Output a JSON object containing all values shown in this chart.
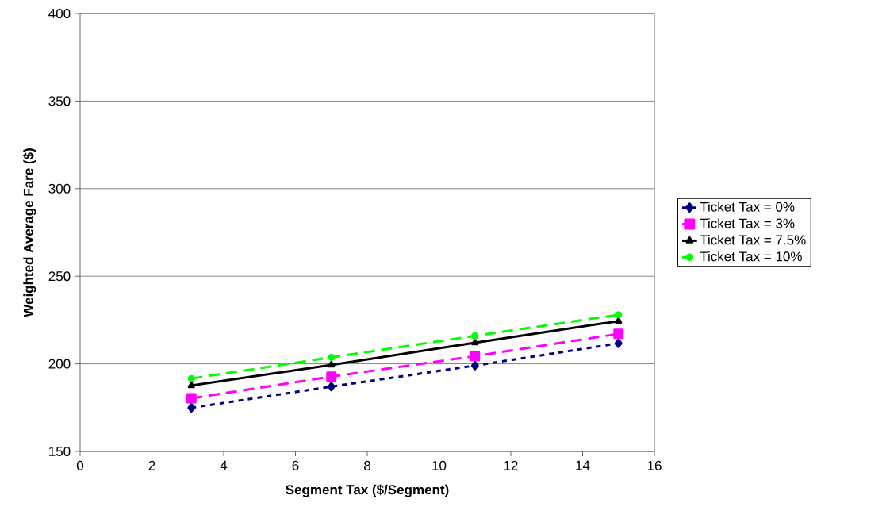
{
  "chart_data": {
    "type": "line",
    "xlabel": "Segment Tax ($/Segment)",
    "ylabel": "Weighted Average Fare ($)",
    "x": [
      3.1,
      7,
      11,
      15
    ],
    "series": [
      {
        "name": "Ticket Tax = 0%",
        "color": "#000080",
        "values": [
          174.9,
          187.0,
          199.0,
          211.7
        ],
        "marker": "diamond",
        "line_style": "dotted"
      },
      {
        "name": "Ticket Tax = 3%",
        "color": "#ff00ff",
        "values": [
          180.3,
          192.7,
          204.4,
          217.1
        ],
        "marker": "square",
        "line_style": "dashed"
      },
      {
        "name": "Ticket Tax = 7.5%",
        "color": "#000000",
        "values": [
          187.6,
          199.4,
          212.0,
          224.4
        ],
        "marker": "triangle",
        "line_style": "solid"
      },
      {
        "name": "Ticket Tax = 10%",
        "color": "#00ff00",
        "values": [
          191.6,
          203.7,
          216.0,
          228.0
        ],
        "marker": "circle",
        "line_style": "dashed"
      }
    ],
    "xlim": [
      0,
      16
    ],
    "xticks": [
      0,
      2,
      4,
      6,
      8,
      10,
      12,
      14,
      16
    ],
    "ylim": [
      150,
      400
    ],
    "yticks": [
      150,
      200,
      250,
      300,
      350,
      400
    ],
    "grid": "y",
    "legend": "right"
  }
}
